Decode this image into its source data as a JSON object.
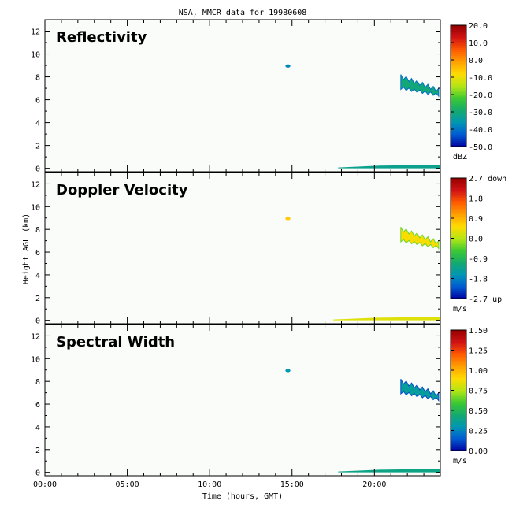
{
  "figure_title": "NSA, MMCR data for 19980608",
  "x_axis": {
    "label": "Time (hours, GMT)",
    "range": [
      0,
      24
    ],
    "ticks": [
      {
        "value": 0,
        "label": "00:00"
      },
      {
        "value": 5,
        "label": "05:00"
      },
      {
        "value": 10,
        "label": "10:00"
      },
      {
        "value": 15,
        "label": "15:00"
      },
      {
        "value": 20,
        "label": "20:00"
      }
    ]
  },
  "y_axis": {
    "label": "Height AGL (km)",
    "range": [
      -0.3,
      13
    ],
    "ticks": [
      0,
      2,
      4,
      6,
      8,
      10,
      12
    ]
  },
  "colormap": [
    "#0000a0",
    "#005ad2",
    "#0096b4",
    "#14aa6e",
    "#3cc832",
    "#b4e614",
    "#ffdc00",
    "#ffa000",
    "#ff5a00",
    "#d21414",
    "#960000"
  ],
  "chart_data": [
    {
      "type": "heatmap",
      "title": "Reflectivity",
      "xlabel": "",
      "ylabel": "",
      "xlim": [
        0,
        24
      ],
      "ylim": [
        -0.3,
        13
      ],
      "colorbar": {
        "min": -50,
        "max": 20,
        "units": "dBZ",
        "labels": [
          "20.0",
          "10.0",
          "0.0",
          "-10.0",
          "-20.0",
          "-30.0",
          "-40.0",
          "-50.0"
        ]
      },
      "cloud_regions": [
        {
          "t_start": 21.6,
          "t_end": 23.9,
          "h_bottom": 6.3,
          "h_top": 8.2,
          "value": -30
        },
        {
          "t_start": 14.6,
          "t_end": 14.9,
          "h_bottom": 8.8,
          "h_top": 9.1,
          "value": -38
        },
        {
          "t_start": 17.8,
          "t_end": 24.0,
          "h_bottom": 0.0,
          "h_top": 0.3,
          "value": -32
        }
      ]
    },
    {
      "type": "heatmap",
      "title": "Doppler Velocity",
      "xlabel": "",
      "ylabel": "Height AGL (km)",
      "xlim": [
        0,
        24
      ],
      "ylim": [
        -0.3,
        13
      ],
      "colorbar": {
        "min": -2.7,
        "max": 2.7,
        "units": "m/s",
        "labels": [
          "2.7 down",
          "1.8",
          "0.9",
          "0.0",
          "-0.9",
          "-1.8",
          "-2.7 up"
        ]
      },
      "cloud_regions": [
        {
          "t_start": 21.6,
          "t_end": 23.9,
          "h_bottom": 6.3,
          "h_top": 8.2,
          "value": 0.5
        },
        {
          "t_start": 14.6,
          "t_end": 14.9,
          "h_bottom": 8.8,
          "h_top": 9.1,
          "value": 0.7
        },
        {
          "t_start": 17.5,
          "t_end": 24.0,
          "h_bottom": 0.0,
          "h_top": 0.3,
          "value": 0.3
        }
      ]
    },
    {
      "type": "heatmap",
      "title": "Spectral Width",
      "xlabel": "Time (hours, GMT)",
      "ylabel": "",
      "xlim": [
        0,
        24
      ],
      "ylim": [
        -0.3,
        13
      ],
      "colorbar": {
        "min": 0,
        "max": 1.5,
        "units": "m/s",
        "labels": [
          "1.50",
          "1.25",
          "1.00",
          "0.75",
          "0.50",
          "0.25",
          "0.00"
        ]
      },
      "cloud_regions": [
        {
          "t_start": 21.6,
          "t_end": 23.9,
          "h_bottom": 6.3,
          "h_top": 8.2,
          "value": 0.35
        },
        {
          "t_start": 14.6,
          "t_end": 14.9,
          "h_bottom": 8.8,
          "h_top": 9.1,
          "value": 0.3
        },
        {
          "t_start": 17.8,
          "t_end": 24.0,
          "h_bottom": 0.0,
          "h_top": 0.3,
          "value": 0.4
        }
      ]
    }
  ]
}
